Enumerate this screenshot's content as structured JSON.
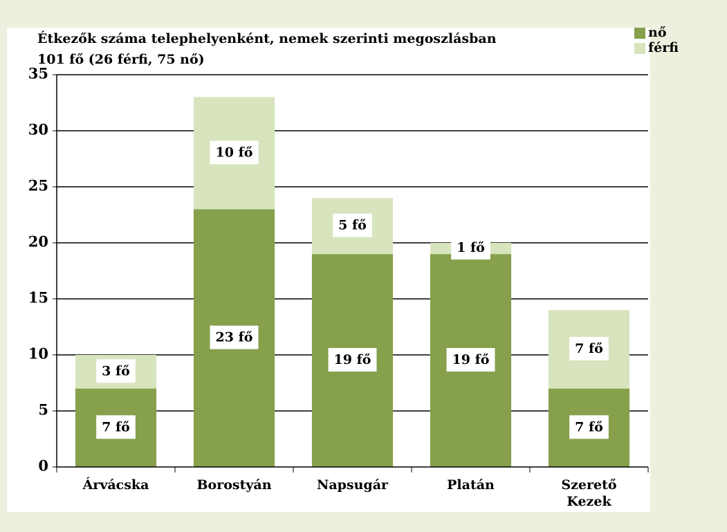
{
  "chart_data": {
    "type": "stacked_bar",
    "title": "Étkezők száma telephelyenként, nemek szerinti megoszlásban",
    "subtitle": "101 fő (26 férfi, 75 nő)",
    "categories": [
      "Árvácska",
      "Borostyán",
      "Napsugár",
      "Platán",
      "Szerető Kezek"
    ],
    "series": [
      {
        "name": "nő",
        "color": "#86a04c",
        "values": [
          7,
          23,
          19,
          19,
          7
        ],
        "value_labels": [
          "7 fő",
          "23 fő",
          "19 fő",
          "19 fő",
          "7 fő"
        ]
      },
      {
        "name": "férfi",
        "color": "#d7e4bd",
        "values": [
          3,
          10,
          5,
          1,
          7
        ],
        "value_labels": [
          "3 fő",
          "10 fő",
          "5 fő",
          "1 fő",
          "7 fő"
        ]
      }
    ],
    "ylim": [
      0,
      35
    ],
    "yticks": [
      0,
      5,
      10,
      15,
      20,
      25,
      30,
      35
    ],
    "grid": true,
    "legend": "top-right"
  }
}
